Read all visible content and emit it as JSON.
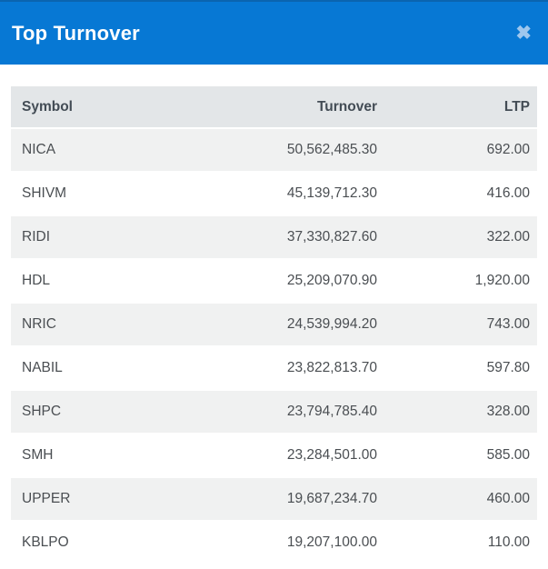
{
  "modal": {
    "title": "Top Turnover",
    "close_icon_glyph": "✖"
  },
  "colors": {
    "header_bg": "#0778d4",
    "header_top_border": "#0a64b0",
    "title_color": "#ffffff",
    "close_color": "#9ec7ee",
    "table_header_bg": "#e3e6e8",
    "table_header_text": "#434c55",
    "row_alt_bg": "#f0f1f1",
    "row_text": "#4a4e52",
    "page_bg": "#ffffff"
  },
  "table": {
    "columns": [
      {
        "key": "symbol",
        "label": "Symbol",
        "align": "left"
      },
      {
        "key": "turnover",
        "label": "Turnover",
        "align": "right"
      },
      {
        "key": "ltp",
        "label": "LTP",
        "align": "right"
      }
    ],
    "rows": [
      {
        "symbol": "NICA",
        "turnover": "50,562,485.30",
        "ltp": "692.00"
      },
      {
        "symbol": "SHIVM",
        "turnover": "45,139,712.30",
        "ltp": "416.00"
      },
      {
        "symbol": "RIDI",
        "turnover": "37,330,827.60",
        "ltp": "322.00"
      },
      {
        "symbol": "HDL",
        "turnover": "25,209,070.90",
        "ltp": "1,920.00"
      },
      {
        "symbol": "NRIC",
        "turnover": "24,539,994.20",
        "ltp": "743.00"
      },
      {
        "symbol": "NABIL",
        "turnover": "23,822,813.70",
        "ltp": "597.80"
      },
      {
        "symbol": "SHPC",
        "turnover": "23,794,785.40",
        "ltp": "328.00"
      },
      {
        "symbol": "SMH",
        "turnover": "23,284,501.00",
        "ltp": "585.00"
      },
      {
        "symbol": "UPPER",
        "turnover": "19,687,234.70",
        "ltp": "460.00"
      },
      {
        "symbol": "KBLPO",
        "turnover": "19,207,100.00",
        "ltp": "110.00"
      }
    ]
  }
}
